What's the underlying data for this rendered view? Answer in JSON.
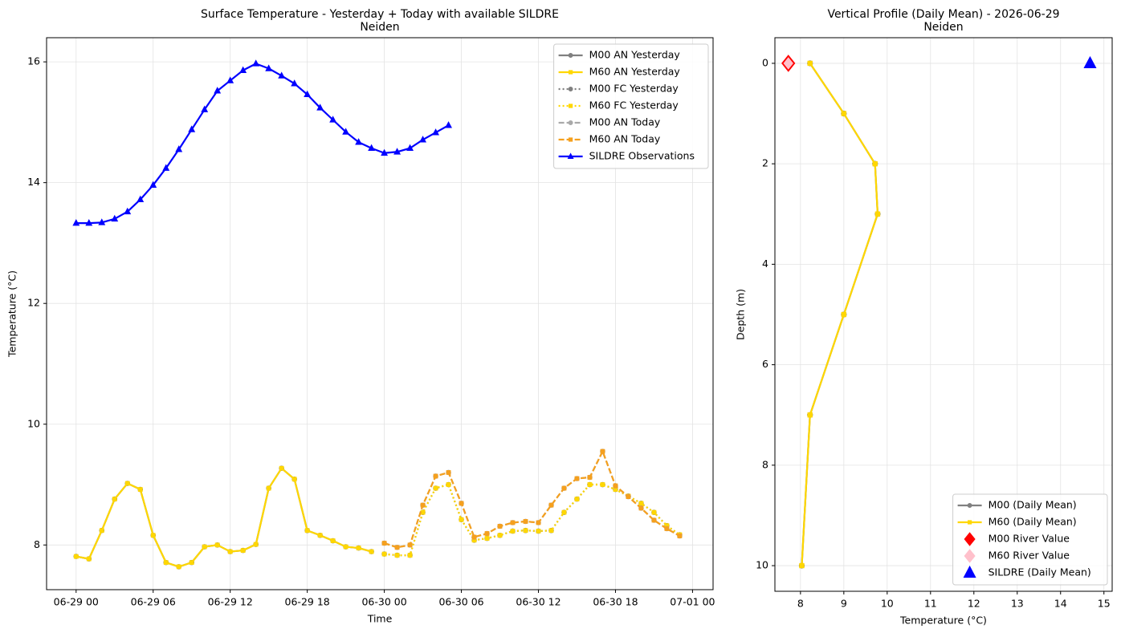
{
  "chart_data": [
    {
      "type": "line",
      "title": "Surface Temperature - Yesterday + Today with available SILDRE",
      "subtitle": "Neiden",
      "x_label": "Time",
      "y_label": "Temperature (°C)",
      "x": [
        0,
        1,
        2,
        3,
        4,
        5,
        6,
        7,
        8,
        9,
        10,
        11,
        12,
        13,
        14,
        15,
        16,
        17,
        18,
        19,
        20,
        21,
        22,
        23,
        24,
        25,
        26,
        27,
        28,
        29,
        30,
        31,
        32,
        33,
        34,
        35,
        36,
        37,
        38,
        39,
        40,
        41,
        42,
        43,
        44,
        45,
        46,
        47
      ],
      "xlim": [
        -2.3,
        49.6
      ],
      "ylim": [
        7.26,
        16.4
      ],
      "xticks": [
        {
          "value": 0,
          "label": "06-29 00"
        },
        {
          "value": 6,
          "label": "06-29 06"
        },
        {
          "value": 12,
          "label": "06-29 12"
        },
        {
          "value": 18,
          "label": "06-29 18"
        },
        {
          "value": 24,
          "label": "06-30 00"
        },
        {
          "value": 30,
          "label": "06-30 06"
        },
        {
          "value": 36,
          "label": "06-30 12"
        },
        {
          "value": 42,
          "label": "06-30 18"
        },
        {
          "value": 48,
          "label": "07-01 00"
        }
      ],
      "yticks": [
        8,
        10,
        12,
        14,
        16
      ],
      "grid": true,
      "legend": "upper right",
      "series": [
        {
          "name": "M00 AN Yesterday",
          "color": "#808080",
          "linestyle": "solid",
          "marker": "o",
          "values": [
            7.81,
            7.77,
            8.24,
            8.76,
            9.02,
            8.92,
            8.16,
            7.71,
            7.64,
            7.71,
            7.97,
            8.0,
            7.89,
            7.91,
            8.01,
            8.94,
            9.27,
            9.09,
            8.24,
            8.16,
            8.07,
            7.97,
            7.95,
            7.89,
            null,
            null,
            null,
            null,
            null,
            null,
            null,
            null,
            null,
            null,
            null,
            null,
            null,
            null,
            null,
            null,
            null,
            null,
            null,
            null,
            null,
            null,
            null,
            null
          ]
        },
        {
          "name": "M60 AN Yesterday",
          "color": "#ffd700",
          "linestyle": "solid",
          "marker": "s",
          "values": [
            7.81,
            7.77,
            8.24,
            8.76,
            9.02,
            8.92,
            8.16,
            7.71,
            7.64,
            7.71,
            7.97,
            8.0,
            7.89,
            7.91,
            8.01,
            8.94,
            9.27,
            9.09,
            8.24,
            8.16,
            8.07,
            7.97,
            7.95,
            7.89,
            null,
            null,
            null,
            null,
            null,
            null,
            null,
            null,
            null,
            null,
            null,
            null,
            null,
            null,
            null,
            null,
            null,
            null,
            null,
            null,
            null,
            null,
            null,
            null
          ]
        },
        {
          "name": "M00 FC Yesterday",
          "color": "#808080",
          "linestyle": "dotted",
          "marker": "o",
          "values": [
            null,
            null,
            null,
            null,
            null,
            null,
            null,
            null,
            null,
            null,
            null,
            null,
            null,
            null,
            null,
            null,
            null,
            null,
            null,
            null,
            null,
            null,
            null,
            null,
            7.85,
            7.83,
            7.83,
            8.54,
            8.94,
            9.0,
            8.42,
            8.08,
            8.11,
            8.16,
            8.23,
            8.24,
            8.23,
            8.24,
            8.54,
            8.76,
            9.0,
            9.0,
            8.92,
            8.81,
            8.69,
            8.54,
            8.32,
            8.17
          ]
        },
        {
          "name": "M60 FC Yesterday",
          "color": "#ffd700",
          "linestyle": "dotted",
          "marker": "s",
          "values": [
            null,
            null,
            null,
            null,
            null,
            null,
            null,
            null,
            null,
            null,
            null,
            null,
            null,
            null,
            null,
            null,
            null,
            null,
            null,
            null,
            null,
            null,
            null,
            null,
            7.85,
            7.83,
            7.83,
            8.54,
            8.94,
            9.0,
            8.42,
            8.08,
            8.11,
            8.16,
            8.23,
            8.24,
            8.23,
            8.24,
            8.54,
            8.76,
            9.0,
            9.0,
            8.92,
            8.81,
            8.69,
            8.54,
            8.32,
            8.17
          ]
        },
        {
          "name": "M00 AN Today",
          "color": "#a9a9a9",
          "linestyle": "dashed",
          "marker": "o",
          "values": [
            null,
            null,
            null,
            null,
            null,
            null,
            null,
            null,
            null,
            null,
            null,
            null,
            null,
            null,
            null,
            null,
            null,
            null,
            null,
            null,
            null,
            null,
            null,
            null,
            8.03,
            7.96,
            8.0,
            8.66,
            9.14,
            9.2,
            8.69,
            8.13,
            8.19,
            8.31,
            8.37,
            8.39,
            8.37,
            8.66,
            8.94,
            9.1,
            9.12,
            9.55,
            8.98,
            8.8,
            8.61,
            8.41,
            8.27,
            8.15
          ]
        },
        {
          "name": "M60 AN Today",
          "color": "#f5a01e",
          "linestyle": "dashed",
          "marker": "s",
          "values": [
            null,
            null,
            null,
            null,
            null,
            null,
            null,
            null,
            null,
            null,
            null,
            null,
            null,
            null,
            null,
            null,
            null,
            null,
            null,
            null,
            null,
            null,
            null,
            null,
            8.03,
            7.96,
            8.0,
            8.66,
            9.14,
            9.2,
            8.69,
            8.13,
            8.19,
            8.31,
            8.37,
            8.39,
            8.37,
            8.66,
            8.94,
            9.1,
            9.12,
            9.55,
            8.98,
            8.8,
            8.61,
            8.41,
            8.27,
            8.15
          ]
        },
        {
          "name": "SILDRE Observations",
          "color": "#0000ff",
          "linestyle": "solid",
          "marker": "^",
          "values": [
            13.33,
            13.33,
            13.34,
            13.4,
            13.52,
            13.72,
            13.96,
            14.24,
            14.55,
            14.88,
            15.21,
            15.52,
            15.69,
            15.86,
            15.97,
            15.89,
            15.77,
            15.64,
            15.46,
            15.24,
            15.04,
            14.84,
            14.67,
            14.57,
            14.49,
            14.51,
            14.57,
            14.71,
            14.83,
            14.95,
            null,
            null,
            null,
            null,
            null,
            null,
            null,
            null,
            null,
            null,
            null,
            null,
            null,
            null,
            null,
            null,
            null,
            null
          ]
        }
      ]
    },
    {
      "type": "line",
      "title": "Vertical Profile (Daily Mean) - 2026-06-29",
      "subtitle": "Neiden",
      "x_label": "Temperature (°C)",
      "y_label": "Depth (m)",
      "xlim": [
        7.41,
        15.19
      ],
      "ylim": [
        10.51,
        -0.51
      ],
      "xticks": [
        8,
        9,
        10,
        11,
        12,
        13,
        14,
        15
      ],
      "yticks": [
        0,
        2,
        4,
        6,
        8,
        10
      ],
      "grid": true,
      "legend": "lower right",
      "series": [
        {
          "name": "M00 (Daily Mean)",
          "color": "#808080",
          "linestyle": "solid",
          "marker": "o",
          "x": [
            8.22,
            9.0,
            9.72,
            9.78,
            9.0,
            8.22,
            8.03
          ],
          "y": [
            0,
            1,
            2,
            3,
            5,
            7,
            10
          ]
        },
        {
          "name": "M60 (Daily Mean)",
          "color": "#ffd700",
          "linestyle": "solid",
          "marker": "s",
          "x": [
            8.22,
            9.0,
            9.72,
            9.78,
            9.0,
            8.22,
            8.03
          ],
          "y": [
            0,
            1,
            2,
            3,
            5,
            7,
            10
          ]
        },
        {
          "name": "M00 River Value",
          "color": "#ff0000",
          "linestyle": "none",
          "marker": "D",
          "x": [
            7.72
          ],
          "y": [
            0
          ]
        },
        {
          "name": "M60 River Value",
          "color": "#ffc0cb",
          "linestyle": "none",
          "marker": "D",
          "x": [
            7.72
          ],
          "y": [
            0
          ]
        },
        {
          "name": "SILDRE (Daily Mean)",
          "color": "#0000ff",
          "linestyle": "none",
          "marker": "^",
          "x": [
            14.68
          ],
          "y": [
            0
          ]
        }
      ]
    }
  ]
}
